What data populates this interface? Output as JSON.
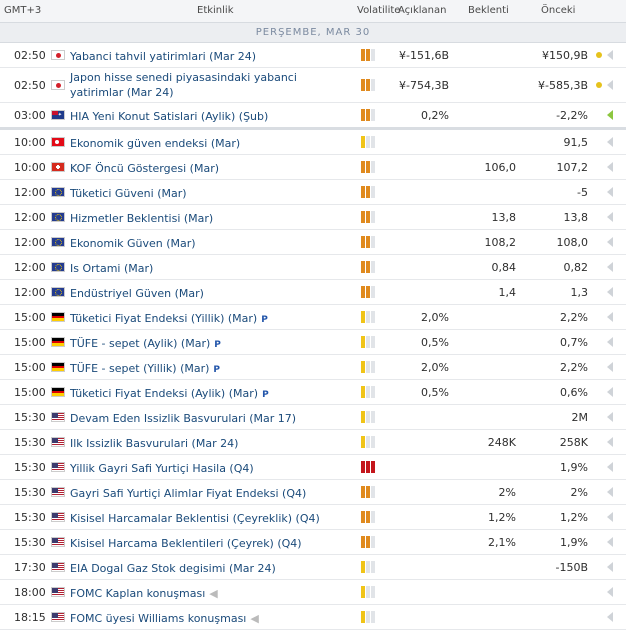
{
  "header": {
    "time": "GMT+3",
    "event": "Etkinlik",
    "volatility": "Volatilite",
    "actual": "Açıklanan",
    "forecast": "Beklenti",
    "previous": "Önceki"
  },
  "day_label": "PERŞEMBE, MAR 30",
  "colors": {
    "vol_high": "#c4161c",
    "vol_med": "#e08a1e",
    "vol_low_on": "#f0c419",
    "vol_off": "#e1e4e8"
  },
  "rows": [
    {
      "time": "02:50",
      "flag": "jp",
      "event": "Yabanci tahvil yatirimlari (Mar 24)",
      "vol": 2,
      "actual": "¥-151,6B",
      "forecast": "",
      "previous": "¥150,9B",
      "pin": false,
      "speech": false,
      "dot": true,
      "bell_green": false
    },
    {
      "time": "02:50",
      "flag": "jp",
      "event": "Japon hisse senedi piyasasindaki yabanci yatirimlar (Mar 24)",
      "vol": 2,
      "actual": "¥-754,3B",
      "forecast": "",
      "previous": "¥-585,3B",
      "pin": false,
      "speech": false,
      "dot": true,
      "bell_green": false,
      "tall": true
    },
    {
      "time": "03:00",
      "flag": "au",
      "event": "HIA Yeni Konut Satislari (Aylik) (Şub)",
      "vol": 2,
      "actual": "0,2%",
      "forecast": "",
      "previous": "-2,2%",
      "pin": false,
      "speech": false,
      "dot": false,
      "bell_green": true,
      "sep": true
    },
    {
      "time": "10:00",
      "flag": "tr",
      "event": "Ekonomik güven endeksi (Mar)",
      "vol": 1,
      "actual": "",
      "forecast": "",
      "previous": "91,5",
      "pin": false,
      "speech": false,
      "dot": false,
      "bell_green": false
    },
    {
      "time": "10:00",
      "flag": "ch",
      "event": "KOF Öncü Göstergesi (Mar)",
      "vol": 2,
      "actual": "",
      "forecast": "106,0",
      "previous": "107,2",
      "pin": false,
      "speech": false,
      "dot": false,
      "bell_green": false
    },
    {
      "time": "12:00",
      "flag": "eu",
      "event": "Tüketici Güveni (Mar)",
      "vol": 2,
      "actual": "",
      "forecast": "",
      "previous": "-5",
      "pin": false,
      "speech": false,
      "dot": false,
      "bell_green": false
    },
    {
      "time": "12:00",
      "flag": "eu",
      "event": "Hizmetler Beklentisi (Mar)",
      "vol": 2,
      "actual": "",
      "forecast": "13,8",
      "previous": "13,8",
      "pin": false,
      "speech": false,
      "dot": false,
      "bell_green": false
    },
    {
      "time": "12:00",
      "flag": "eu",
      "event": "Ekonomik Güven (Mar)",
      "vol": 2,
      "actual": "",
      "forecast": "108,2",
      "previous": "108,0",
      "pin": false,
      "speech": false,
      "dot": false,
      "bell_green": false
    },
    {
      "time": "12:00",
      "flag": "eu",
      "event": "Is Ortami (Mar)",
      "vol": 2,
      "actual": "",
      "forecast": "0,84",
      "previous": "0,82",
      "pin": false,
      "speech": false,
      "dot": false,
      "bell_green": false
    },
    {
      "time": "12:00",
      "flag": "eu",
      "event": "Endüstriyel Güven (Mar)",
      "vol": 2,
      "actual": "",
      "forecast": "1,4",
      "previous": "1,3",
      "pin": false,
      "speech": false,
      "dot": false,
      "bell_green": false
    },
    {
      "time": "15:00",
      "flag": "de",
      "event": "Tüketici Fiyat Endeksi (Yillik) (Mar)",
      "vol": 1,
      "actual": "2,0%",
      "forecast": "",
      "previous": "2,2%",
      "pin": true,
      "speech": false,
      "dot": false,
      "bell_green": false
    },
    {
      "time": "15:00",
      "flag": "de",
      "event": "TÜFE - sepet (Aylik) (Mar)",
      "vol": 1,
      "actual": "0,5%",
      "forecast": "",
      "previous": "0,7%",
      "pin": true,
      "speech": false,
      "dot": false,
      "bell_green": false
    },
    {
      "time": "15:00",
      "flag": "de",
      "event": "TÜFE - sepet (Yillik) (Mar)",
      "vol": 1,
      "actual": "2,0%",
      "forecast": "",
      "previous": "2,2%",
      "pin": true,
      "speech": false,
      "dot": false,
      "bell_green": false
    },
    {
      "time": "15:00",
      "flag": "de",
      "event": "Tüketici Fiyat Endeksi (Aylik) (Mar)",
      "vol": 1,
      "actual": "0,5%",
      "forecast": "",
      "previous": "0,6%",
      "pin": true,
      "speech": false,
      "dot": false,
      "bell_green": false
    },
    {
      "time": "15:30",
      "flag": "us",
      "event": "Devam Eden Issizlik Basvurulari (Mar 17)",
      "vol": 1,
      "actual": "",
      "forecast": "",
      "previous": "2M",
      "pin": false,
      "speech": false,
      "dot": false,
      "bell_green": false
    },
    {
      "time": "15:30",
      "flag": "us",
      "event": "Ilk Issizlik Basvurulari (Mar 24)",
      "vol": 1,
      "actual": "",
      "forecast": "248K",
      "previous": "258K",
      "pin": false,
      "speech": false,
      "dot": false,
      "bell_green": false
    },
    {
      "time": "15:30",
      "flag": "us",
      "event": "Yillik Gayri Safi Yurtiçi Hasila (Q4)",
      "vol": 3,
      "actual": "",
      "forecast": "",
      "previous": "1,9%",
      "pin": false,
      "speech": false,
      "dot": false,
      "bell_green": false
    },
    {
      "time": "15:30",
      "flag": "us",
      "event": "Gayri Safi Yurtiçi Alimlar Fiyat Endeksi (Q4)",
      "vol": 2,
      "actual": "",
      "forecast": "2%",
      "previous": "2%",
      "pin": false,
      "speech": false,
      "dot": false,
      "bell_green": false
    },
    {
      "time": "15:30",
      "flag": "us",
      "event": "Kisisel Harcamalar Beklentisi (Çeyreklik) (Q4)",
      "vol": 2,
      "actual": "",
      "forecast": "1,2%",
      "previous": "1,2%",
      "pin": false,
      "speech": false,
      "dot": false,
      "bell_green": false
    },
    {
      "time": "15:30",
      "flag": "us",
      "event": "Kisisel Harcama Beklentileri (Çeyrek) (Q4)",
      "vol": 2,
      "actual": "",
      "forecast": "2,1%",
      "previous": "1,9%",
      "pin": false,
      "speech": false,
      "dot": false,
      "bell_green": false
    },
    {
      "time": "17:30",
      "flag": "us",
      "event": "EIA Dogal Gaz Stok degisimi (Mar 24)",
      "vol": 1,
      "actual": "",
      "forecast": "",
      "previous": "-150B",
      "pin": false,
      "speech": false,
      "dot": false,
      "bell_green": false
    },
    {
      "time": "18:00",
      "flag": "us",
      "event": "FOMC Kaplan konuşması",
      "vol": 1,
      "actual": "",
      "forecast": "",
      "previous": "",
      "pin": false,
      "speech": true,
      "dot": false,
      "bell_green": false
    },
    {
      "time": "18:15",
      "flag": "us",
      "event": "FOMC üyesi Williams konuşması",
      "vol": 1,
      "actual": "",
      "forecast": "",
      "previous": "",
      "pin": false,
      "speech": true,
      "dot": false,
      "bell_green": false
    }
  ],
  "pin_glyph": "P",
  "speech_glyph": "◀"
}
